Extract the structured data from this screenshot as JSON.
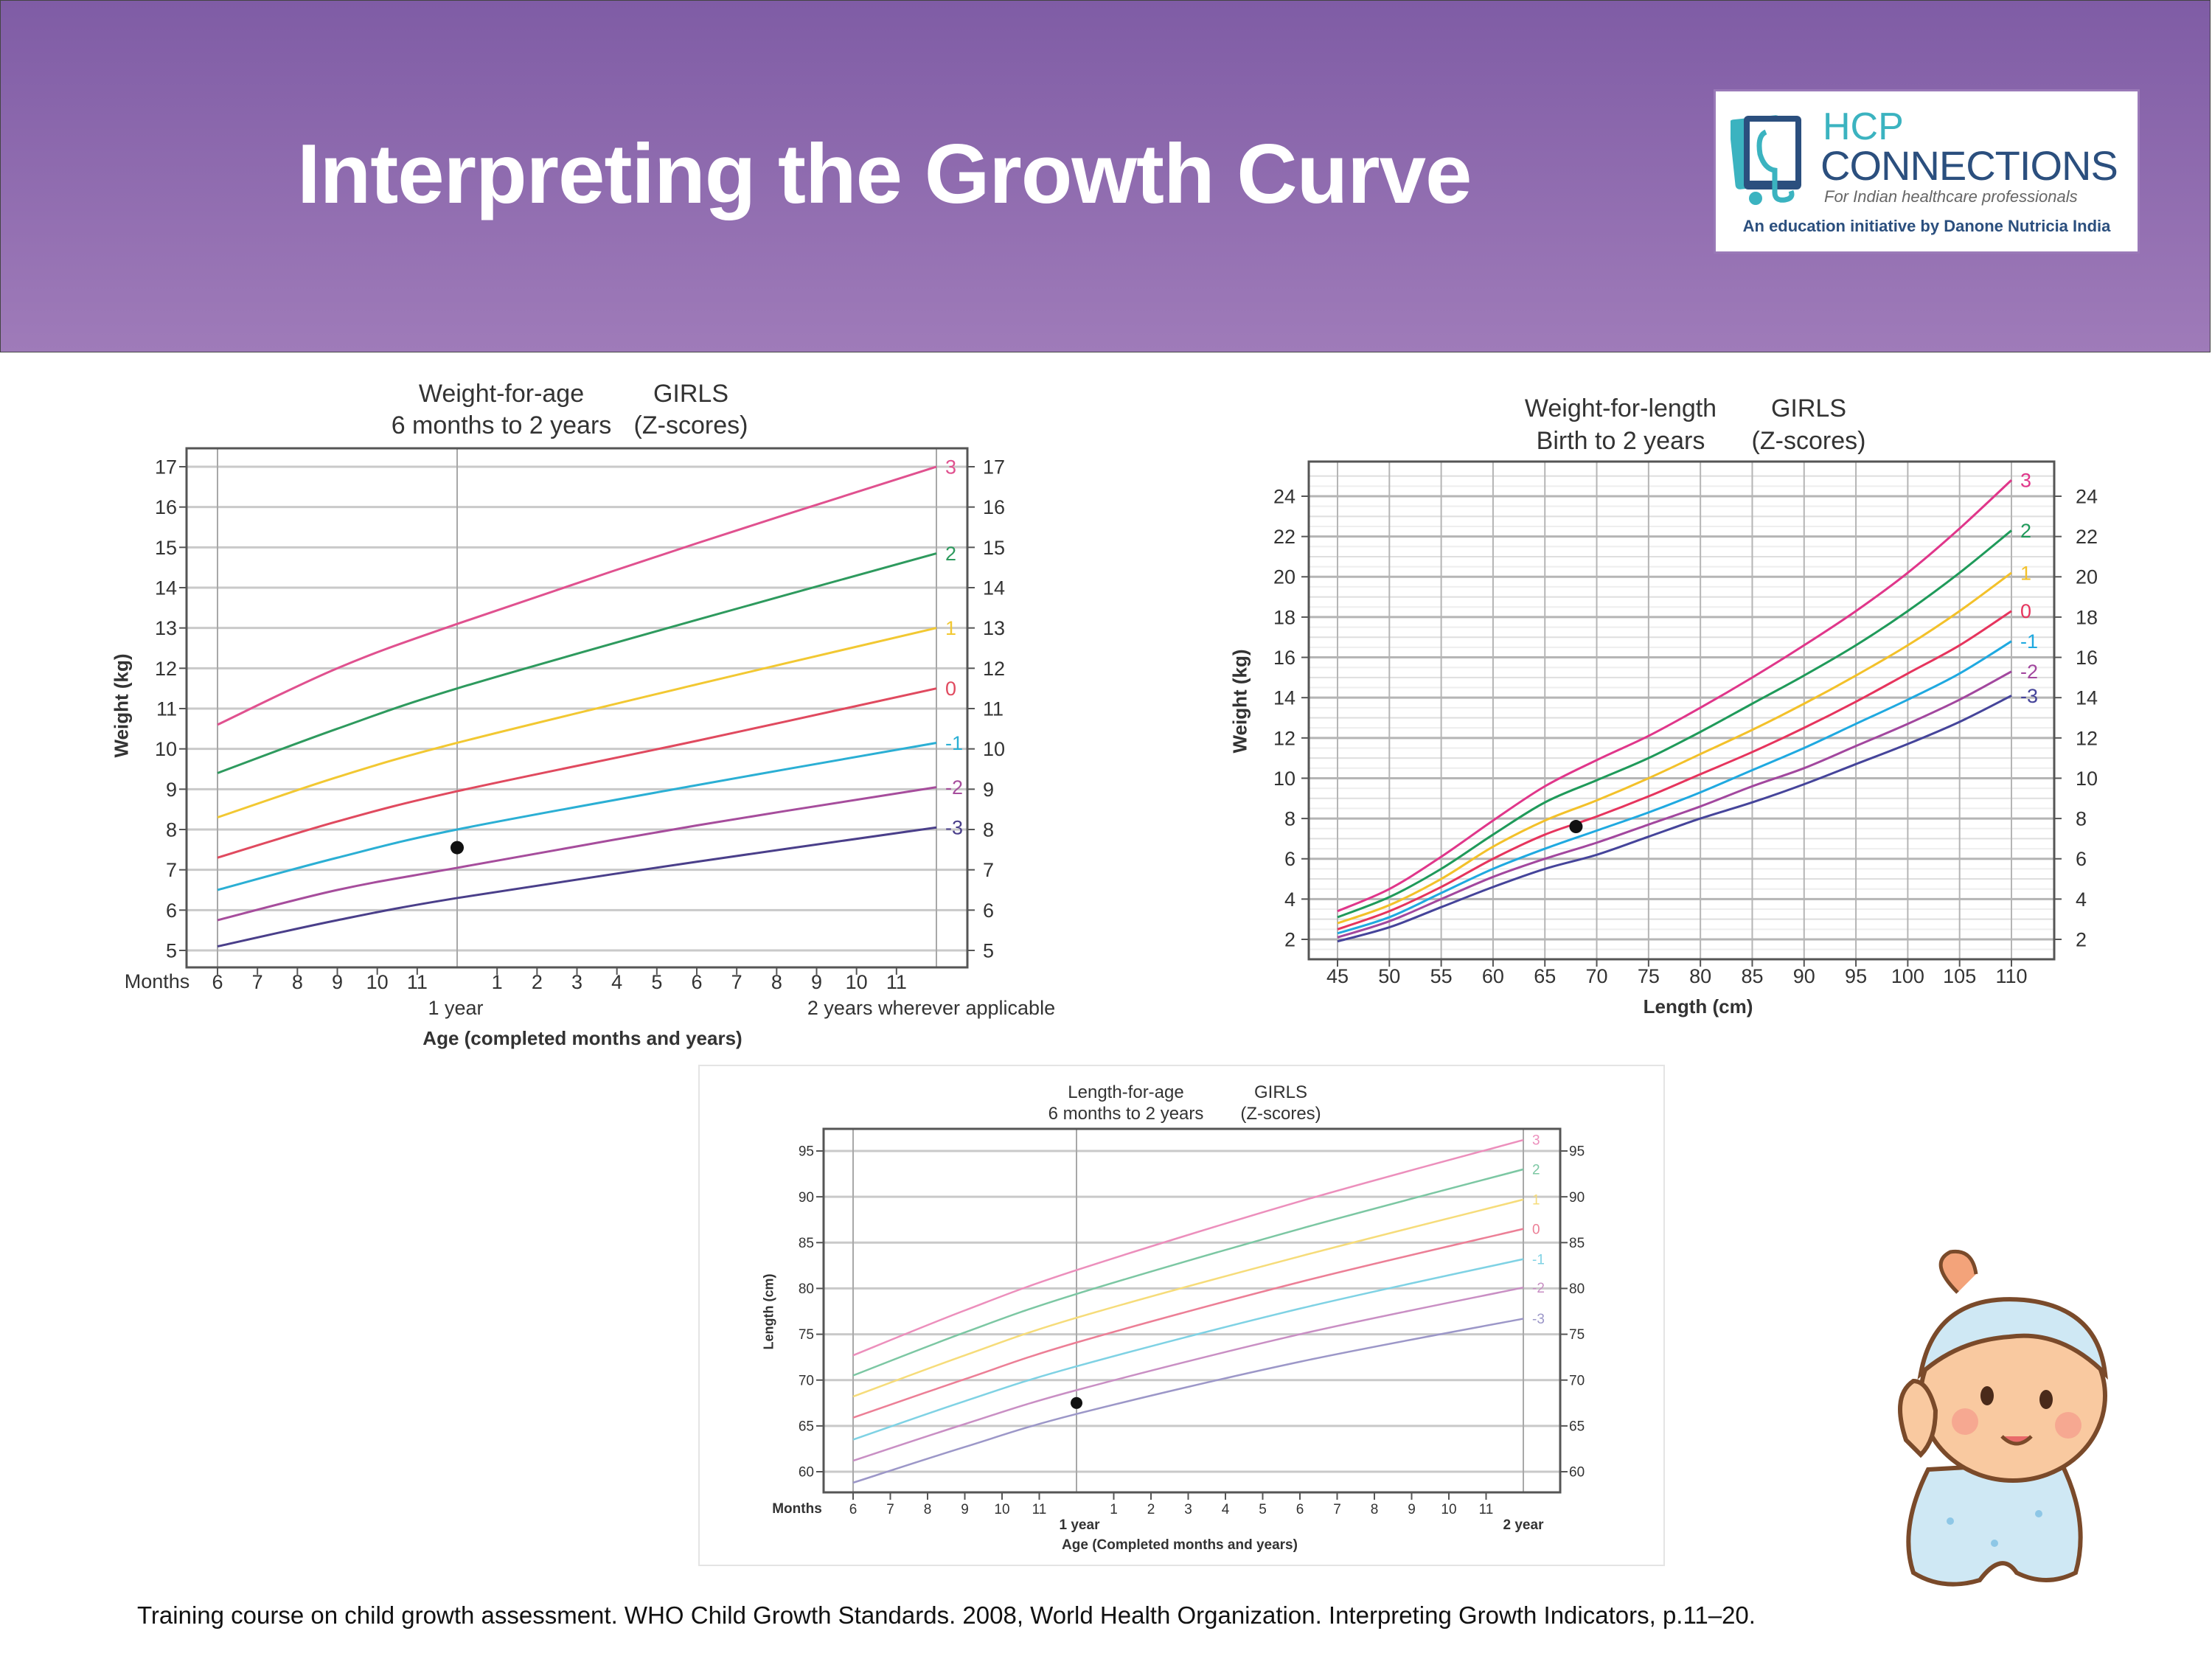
{
  "header": {
    "title": "Interpreting the Growth Curve"
  },
  "logo": {
    "line1": "HCP",
    "line2": "CONNECTIONS",
    "tagline": "For Indian healthcare professionals",
    "initiative": "An education initiative by Danone Nutricia India",
    "colors": {
      "teal": "#3bb3c0",
      "navy": "#2b4f7e"
    }
  },
  "citation": "Training course on child growth assessment. WHO Child Growth Standards. 2008, World Health Organization. Interpreting Growth Indicators, p.11–20.",
  "illustration": {
    "icon": "baby-icon"
  },
  "chart_data": [
    {
      "id": "weight-for-age",
      "type": "line",
      "title": "Weight-for-age",
      "subtitle": "6 months to 2 years",
      "group": "GIRLS",
      "group_sub": "(Z-scores)",
      "xlabel": "Age (completed months and years)",
      "ylabel": "Weight (kg)",
      "x_prefix_label": "Months",
      "x_sub_labels": [
        "1 year",
        "2 years wherever applicable"
      ],
      "xlim": [
        6,
        24
      ],
      "ylim": [
        5,
        17
      ],
      "yticks": [
        5,
        6,
        7,
        8,
        9,
        10,
        11,
        12,
        13,
        14,
        15,
        16,
        17
      ],
      "xticks": [
        6,
        7,
        8,
        9,
        10,
        11,
        13,
        14,
        15,
        16,
        17,
        18,
        19,
        20,
        21,
        22,
        23
      ],
      "xtick_labels": [
        "6",
        "7",
        "8",
        "9",
        "10",
        "11",
        "1",
        "2",
        "3",
        "4",
        "5",
        "6",
        "7",
        "8",
        "9",
        "10",
        "11"
      ],
      "x": [
        6,
        9,
        12,
        18,
        24
      ],
      "series": [
        {
          "name": "3",
          "color": "#e0518f",
          "values": [
            10.6,
            12.0,
            13.1,
            15.1,
            17.0
          ]
        },
        {
          "name": "2",
          "color": "#2e9a5e",
          "values": [
            9.4,
            10.5,
            11.5,
            13.2,
            14.85
          ]
        },
        {
          "name": "1",
          "color": "#f2c832",
          "values": [
            8.3,
            9.3,
            10.15,
            11.6,
            13.0
          ]
        },
        {
          "name": "0",
          "color": "#e04a5f",
          "values": [
            7.3,
            8.2,
            8.95,
            10.2,
            11.5
          ]
        },
        {
          "name": "-1",
          "color": "#2bafd4",
          "values": [
            6.5,
            7.3,
            8.0,
            9.1,
            10.15
          ]
        },
        {
          "name": "-2",
          "color": "#a64d9c",
          "values": [
            5.75,
            6.5,
            7.05,
            8.1,
            9.05
          ]
        },
        {
          "name": "-3",
          "color": "#4a3f8a",
          "values": [
            5.1,
            5.75,
            6.3,
            7.2,
            8.05
          ]
        }
      ],
      "point": {
        "x": 12,
        "y": 7.55
      },
      "grid": true
    },
    {
      "id": "weight-for-length",
      "type": "line",
      "title": "Weight-for-length",
      "subtitle": "Birth to 2 years",
      "group": "GIRLS",
      "group_sub": "(Z-scores)",
      "xlabel": "Length (cm)",
      "ylabel": "Weight (kg)",
      "xlim": [
        45,
        110
      ],
      "ylim": [
        2,
        24
      ],
      "yticks": [
        2,
        4,
        6,
        8,
        10,
        12,
        14,
        16,
        18,
        20,
        22,
        24
      ],
      "xticks": [
        45,
        50,
        55,
        60,
        65,
        70,
        75,
        80,
        85,
        90,
        95,
        100,
        105,
        110
      ],
      "xtick_labels": [
        "45",
        "50",
        "55",
        "60",
        "65",
        "70",
        "75",
        "80",
        "85",
        "90",
        "95",
        "100",
        "105",
        "110"
      ],
      "x": [
        45,
        50,
        55,
        60,
        65,
        70,
        75,
        80,
        85,
        90,
        95,
        100,
        105,
        110
      ],
      "series": [
        {
          "name": "3",
          "color": "#e0368a",
          "values": [
            3.4,
            4.5,
            6.1,
            7.9,
            9.6,
            10.9,
            12.1,
            13.5,
            15.0,
            16.6,
            18.3,
            20.2,
            22.4,
            24.8
          ]
        },
        {
          "name": "2",
          "color": "#1f9a5a",
          "values": [
            3.1,
            4.1,
            5.5,
            7.2,
            8.8,
            9.9,
            11.0,
            12.3,
            13.7,
            15.1,
            16.6,
            18.3,
            20.2,
            22.3
          ]
        },
        {
          "name": "1",
          "color": "#f3c12a",
          "values": [
            2.8,
            3.7,
            5.0,
            6.6,
            7.9,
            8.9,
            10.0,
            11.2,
            12.4,
            13.7,
            15.1,
            16.6,
            18.3,
            20.2
          ]
        },
        {
          "name": "0",
          "color": "#e6345d",
          "values": [
            2.5,
            3.4,
            4.6,
            6.0,
            7.2,
            8.1,
            9.1,
            10.2,
            11.3,
            12.5,
            13.8,
            15.2,
            16.6,
            18.3
          ]
        },
        {
          "name": "-1",
          "color": "#1fa9e0",
          "values": [
            2.3,
            3.1,
            4.3,
            5.5,
            6.5,
            7.4,
            8.3,
            9.3,
            10.4,
            11.5,
            12.7,
            13.9,
            15.2,
            16.8
          ]
        },
        {
          "name": "-2",
          "color": "#a2479e",
          "values": [
            2.1,
            2.9,
            4.0,
            5.1,
            6.0,
            6.8,
            7.7,
            8.6,
            9.6,
            10.5,
            11.6,
            12.7,
            13.9,
            15.3
          ]
        },
        {
          "name": "-3",
          "color": "#45449a",
          "values": [
            1.9,
            2.6,
            3.6,
            4.6,
            5.5,
            6.2,
            7.1,
            8.0,
            8.8,
            9.7,
            10.7,
            11.7,
            12.8,
            14.1
          ]
        }
      ],
      "point": {
        "x": 68,
        "y": 7.6
      },
      "grid": true
    },
    {
      "id": "length-for-age",
      "type": "line",
      "title": "Length-for-age",
      "subtitle": "6 months to 2 years",
      "group": "GIRLS",
      "group_sub": "(Z-scores)",
      "xlabel": "Age (Completed months and years)",
      "ylabel": "Length (cm)",
      "x_prefix_label": "Months",
      "x_sub_labels": [
        "1 year",
        "2 year"
      ],
      "xlim": [
        6,
        24
      ],
      "ylim": [
        60,
        95
      ],
      "yticks": [
        60,
        65,
        70,
        75,
        80,
        85,
        90,
        95
      ],
      "xticks": [
        6,
        7,
        8,
        9,
        10,
        11,
        13,
        14,
        15,
        16,
        17,
        18,
        19,
        20,
        21,
        22,
        23
      ],
      "xtick_labels": [
        "6",
        "7",
        "8",
        "9",
        "10",
        "11",
        "1",
        "2",
        "3",
        "4",
        "5",
        "6",
        "7",
        "8",
        "9",
        "10",
        "11"
      ],
      "x": [
        6,
        9,
        12,
        18,
        24
      ],
      "series": [
        {
          "name": "3",
          "color": "#ec8fbc",
          "values": [
            72.7,
            77.6,
            82.0,
            89.5,
            96.2
          ]
        },
        {
          "name": "2",
          "color": "#7cc7a3",
          "values": [
            70.5,
            75.2,
            79.4,
            86.5,
            93.0
          ]
        },
        {
          "name": "1",
          "color": "#f6dc7a",
          "values": [
            68.2,
            72.7,
            76.8,
            83.5,
            89.7
          ]
        },
        {
          "name": "0",
          "color": "#ec7f96",
          "values": [
            65.9,
            70.1,
            74.1,
            80.7,
            86.5
          ]
        },
        {
          "name": "-1",
          "color": "#7fd2e4",
          "values": [
            63.5,
            67.7,
            71.5,
            77.8,
            83.2
          ]
        },
        {
          "name": "-2",
          "color": "#c98fc4",
          "values": [
            61.2,
            65.2,
            68.9,
            75.0,
            80.1
          ]
        },
        {
          "name": "-3",
          "color": "#9c97c8",
          "values": [
            58.8,
            62.7,
            66.3,
            72.0,
            76.7
          ]
        }
      ],
      "point": {
        "x": 12,
        "y": 67.5
      },
      "grid": true
    }
  ]
}
